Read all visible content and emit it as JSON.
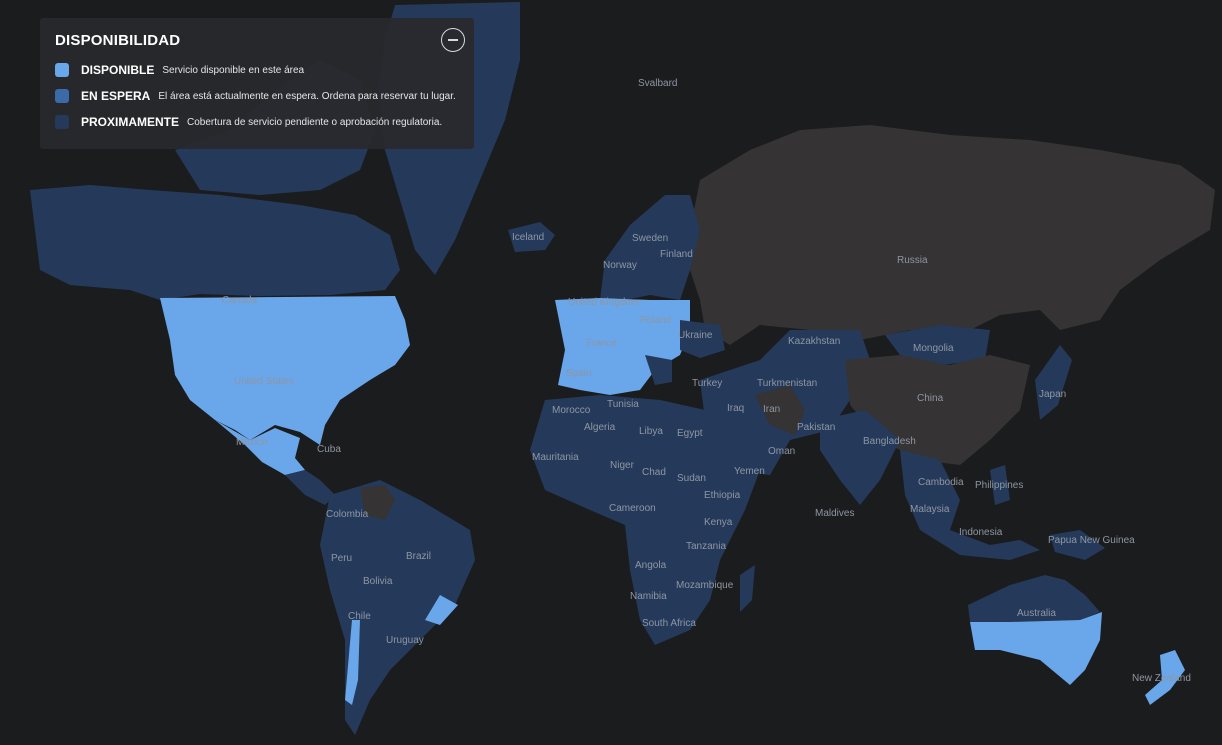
{
  "legend": {
    "title": "DISPONIBILIDAD",
    "items": [
      {
        "key": "DISPONIBLE",
        "description": "Servicio disponible en este área",
        "color": "#6aa6ea"
      },
      {
        "key": "EN ESPERA",
        "description": "El área está actualmente en espera. Ordena para reservar tu lugar.",
        "color": "#3a6aa8"
      },
      {
        "key": "PROXIMAMENTE",
        "description": "Cobertura de servicio pendiente o aprobación regulatoria.",
        "color": "#253a5a"
      }
    ],
    "collapse_icon": "minus-circle-icon"
  },
  "map": {
    "background_color": "#1b1c1e",
    "unavailable_color": "#353333",
    "labels": {
      "svalbard": "Svalbard",
      "iceland": "Iceland",
      "sweden": "Sweden",
      "finland": "Finland",
      "norway": "Norway",
      "russia": "Russia",
      "canada": "Canada",
      "united_kingdom": "United\nKingdom",
      "poland": "Poland",
      "ukraine": "Ukraine",
      "france": "France",
      "kazakhstan": "Kazakhstan",
      "mongolia": "Mongolia",
      "united_states": "United States",
      "spain": "Spain",
      "turkey": "Turkey",
      "turkmenistan": "Turkmenistan",
      "tunisia": "Tunisia",
      "morocco": "Morocco",
      "iraq": "Iraq",
      "iran": "Iran",
      "china": "China",
      "japan": "Japan",
      "mexico": "Mexico",
      "cuba": "Cuba",
      "algeria": "Algeria",
      "libya": "Libya",
      "egypt": "Egypt",
      "pakistan": "Pakistan",
      "bangladesh": "Bangladesh",
      "oman": "Oman",
      "mauritania": "Mauritania",
      "niger": "Niger",
      "chad": "Chad",
      "sudan": "Sudan",
      "yemen": "Yemen",
      "cambodia": "Cambodia",
      "philippines": "Philippines",
      "ethiopia": "Ethiopia",
      "colombia": "Colombia",
      "cameroon": "Cameroon",
      "maldives": "Maldives",
      "malaysia": "Malaysia",
      "kenya": "Kenya",
      "indonesia": "Indonesia",
      "papua_new_guinea": "Papua New\nGuinea",
      "peru": "Peru",
      "brazil": "Brazil",
      "tanzania": "Tanzania",
      "angola": "Angola",
      "bolivia": "Bolivia",
      "mozambique": "Mozambique",
      "namibia": "Namibia",
      "australia": "Australia",
      "chile": "Chile",
      "south_africa": "South Africa",
      "uruguay": "Uruguay",
      "new_zealand": "New Zealand"
    }
  }
}
